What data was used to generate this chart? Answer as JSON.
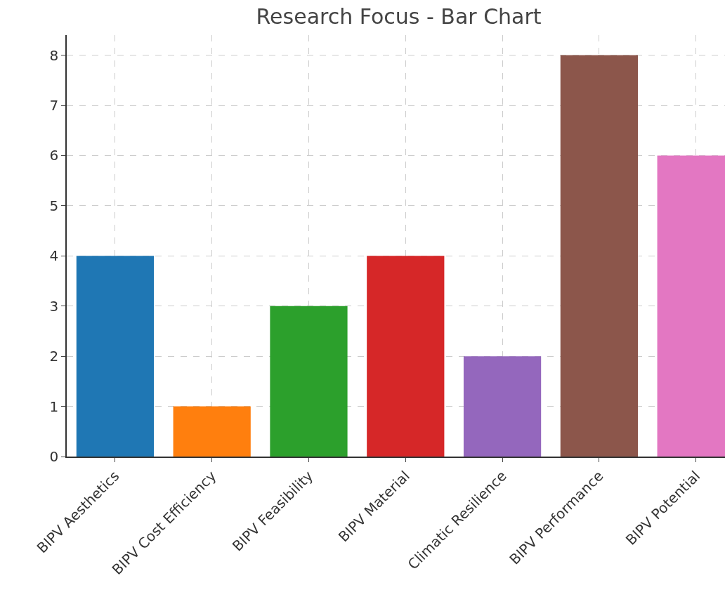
{
  "chart_data": {
    "type": "bar",
    "title": "Research Focus - Bar Chart",
    "categories": [
      "BIPV Aesthetics",
      "BIPV Cost Efficiency",
      "BIPV Feasibility",
      "BIPV Material",
      "Climatic Resilience",
      "BIPV Performance",
      "BIPV Potential"
    ],
    "values": [
      4,
      1,
      3,
      4,
      2,
      8,
      6
    ],
    "colors": [
      "#1f77b4",
      "#ff7f0e",
      "#2ca02c",
      "#d62728",
      "#9467bd",
      "#8c564b",
      "#e377c2"
    ],
    "ylim": [
      0,
      8.4
    ],
    "yticks": [
      0,
      1,
      2,
      3,
      4,
      5,
      6,
      7,
      8
    ],
    "grid": true
  }
}
